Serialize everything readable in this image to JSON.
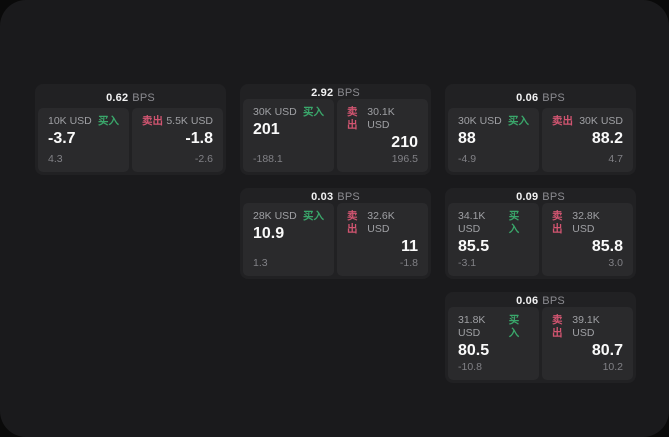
{
  "labels": {
    "bps_unit": "BPS",
    "buy": "买入",
    "sell": "卖出"
  },
  "colors": {
    "panel_bg": "#1a1a1c",
    "card_bg": "#212123",
    "tile_bg": "#2a2a2c",
    "buy": "#3aa76b",
    "sell": "#d25571"
  },
  "cards": [
    {
      "bps": "0.62",
      "buy": {
        "notional": "10K USD",
        "price": "-3.7",
        "delta": "4.3"
      },
      "sell": {
        "notional": "5.5K USD",
        "price": "-1.8",
        "delta": "-2.6"
      }
    },
    {
      "bps": "2.92",
      "buy": {
        "notional": "30K USD",
        "price": "201",
        "delta": "-188.1"
      },
      "sell": {
        "notional": "30.1K USD",
        "price": "210",
        "delta": "196.5"
      }
    },
    {
      "bps": "0.06",
      "buy": {
        "notional": "30K USD",
        "price": "88",
        "delta": "-4.9"
      },
      "sell": {
        "notional": "30K USD",
        "price": "88.2",
        "delta": "4.7"
      }
    },
    {
      "bps": "0.03",
      "buy": {
        "notional": "28K USD",
        "price": "10.9",
        "delta": "1.3"
      },
      "sell": {
        "notional": "32.6K USD",
        "price": "11",
        "delta": "-1.8"
      }
    },
    {
      "bps": "0.09",
      "buy": {
        "notional": "34.1K USD",
        "price": "85.5",
        "delta": "-3.1"
      },
      "sell": {
        "notional": "32.8K USD",
        "price": "85.8",
        "delta": "3.0"
      }
    },
    {
      "bps": "0.06",
      "buy": {
        "notional": "31.8K USD",
        "price": "80.5",
        "delta": "-10.8"
      },
      "sell": {
        "notional": "39.1K USD",
        "price": "80.7",
        "delta": "10.2"
      }
    }
  ]
}
